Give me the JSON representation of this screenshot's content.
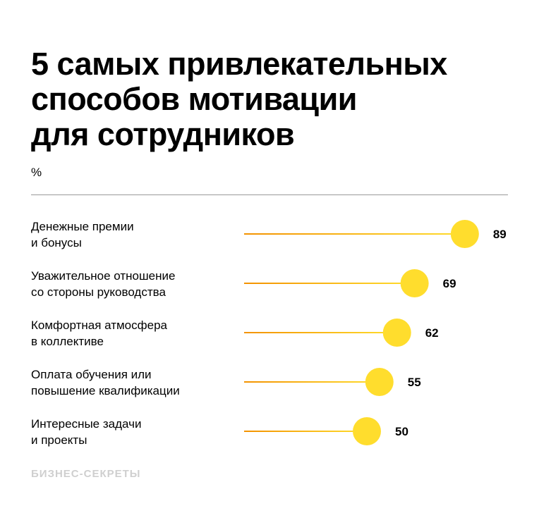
{
  "chart_data": {
    "type": "lollipop",
    "title": "5 самых привлекательных способов мотивации для сотрудников",
    "title_lines": [
      "5 самых привлекательных",
      "способов мотивации",
      "для сотрудников"
    ],
    "unit": "%",
    "categories": [
      [
        "Денежные премии",
        "и бонусы"
      ],
      [
        "Уважительное отношение",
        "со стороны руководства"
      ],
      [
        "Комфортная атмосфера",
        "в коллективе"
      ],
      [
        "Оплата обучения или",
        "повышение квалификации"
      ],
      [
        "Интересные задачи",
        "и проекты"
      ]
    ],
    "values": [
      89,
      69,
      62,
      55,
      50
    ],
    "xlim": [
      0,
      100
    ],
    "colors": {
      "line_start": "#f39200",
      "line_end": "#ffdd2d",
      "dot": "#ffdd2d"
    }
  },
  "source_logo": "БИЗНЕС-СЕКРЕТЫ"
}
